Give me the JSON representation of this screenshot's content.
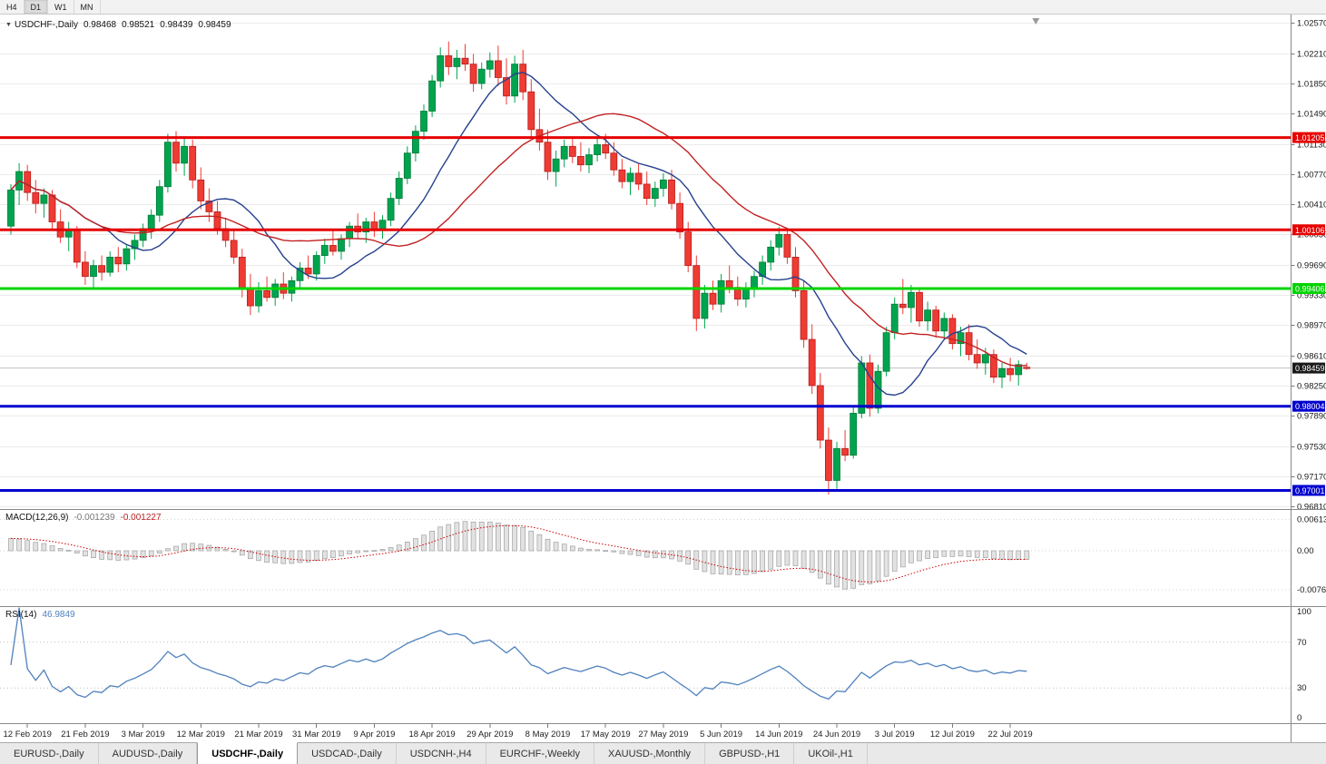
{
  "icons": {
    "dropdown": "▼",
    "shift_marker": "▽"
  },
  "toolbar": {
    "timeframes": [
      {
        "label": "H4",
        "active": false
      },
      {
        "label": "D1",
        "active": true
      },
      {
        "label": "W1",
        "active": false
      },
      {
        "label": "MN",
        "active": false
      }
    ]
  },
  "chart": {
    "title": "USDCHF-,Daily",
    "open": "0.98468",
    "high": "0.98521",
    "low": "0.98439",
    "close": "0.98459",
    "price_axis_labels": [
      "1.02570",
      "1.02210",
      "1.01850",
      "1.01490",
      "1.01130",
      "1.00770",
      "1.00410",
      "1.00050",
      "0.99690",
      "0.99330",
      "0.98970",
      "0.98610",
      "0.98250",
      "0.97890",
      "0.97530",
      "0.97170",
      "0.96810"
    ],
    "current_price": {
      "value": 0.98459,
      "label": "0.98459",
      "badge_color": "#1a1a1a"
    },
    "levels": [
      {
        "value": 1.01205,
        "label": "1.01205",
        "color": "#e60000"
      },
      {
        "value": 1.00106,
        "label": "1.00106",
        "color": "#e60000"
      },
      {
        "value": 0.99406,
        "label": "0.99406",
        "color": "#00d400"
      },
      {
        "value": 0.98004,
        "label": "0.98004",
        "color": "#0000d0"
      },
      {
        "value": 0.97001,
        "label": "0.97001",
        "color": "#0000d0"
      }
    ]
  },
  "chart_data": {
    "type": "candlestick",
    "symbol": "USDCHF",
    "timeframe": "Daily",
    "price_range": {
      "min": 0.96779,
      "max": 1.02671
    },
    "x_ticks": {
      "labels": [
        "12 Feb 2019",
        "21 Feb 2019",
        "3 Mar 2019",
        "12 Mar 2019",
        "21 Mar 2019",
        "31 Mar 2019",
        "9 Apr 2019",
        "18 Apr 2019",
        "29 Apr 2019",
        "8 May 2019",
        "17 May 2019",
        "27 May 2019",
        "5 Jun 2019",
        "14 Jun 2019",
        "24 Jun 2019",
        "3 Jul 2019",
        "12 Jul 2019",
        "22 Jul 2019"
      ],
      "indices": [
        2,
        9,
        16,
        23,
        30,
        37,
        44,
        51,
        58,
        65,
        72,
        79,
        86,
        93,
        100,
        107,
        114,
        121
      ]
    },
    "candles": [
      [
        1.0015,
        1.0065,
        1.0005,
        1.0058
      ],
      [
        1.0058,
        1.009,
        1.004,
        1.008
      ],
      [
        1.008,
        1.0088,
        1.0045,
        1.0055
      ],
      [
        1.0055,
        1.007,
        1.003,
        1.0042
      ],
      [
        1.0042,
        1.006,
        1.0025,
        1.0052
      ],
      [
        1.0052,
        1.0058,
        1.001,
        1.002
      ],
      [
        1.002,
        1.0035,
        0.9995,
        1.0002
      ],
      [
        1.0002,
        1.002,
        0.9985,
        1.001
      ],
      [
        1.001,
        1.0015,
        0.9965,
        0.9972
      ],
      [
        0.9972,
        0.9985,
        0.9945,
        0.9955
      ],
      [
        0.9955,
        0.9975,
        0.994,
        0.9968
      ],
      [
        0.9968,
        0.998,
        0.995,
        0.996
      ],
      [
        0.996,
        0.9985,
        0.9955,
        0.9978
      ],
      [
        0.9978,
        0.999,
        0.996,
        0.997
      ],
      [
        0.997,
        0.9993,
        0.9962,
        0.9988
      ],
      [
        0.9988,
        1.0005,
        0.9975,
        0.9998
      ],
      [
        0.9998,
        1.0018,
        0.999,
        1.0012
      ],
      [
        1.0012,
        1.0035,
        1.0,
        1.0028
      ],
      [
        1.0028,
        1.007,
        1.002,
        1.0062
      ],
      [
        1.0062,
        1.0125,
        1.0055,
        1.0115
      ],
      [
        1.0115,
        1.0128,
        1.008,
        1.009
      ],
      [
        1.009,
        1.0122,
        1.0075,
        1.011
      ],
      [
        1.011,
        1.0118,
        1.006,
        1.007
      ],
      [
        1.007,
        1.0085,
        1.0035,
        1.0045
      ],
      [
        1.0045,
        1.006,
        1.002,
        1.0032
      ],
      [
        1.0032,
        1.0045,
        1.0005,
        1.0012
      ],
      [
        1.0012,
        1.0025,
        0.999,
        0.9998
      ],
      [
        0.9998,
        1.001,
        0.997,
        0.9978
      ],
      [
        0.9978,
        0.9988,
        0.993,
        0.994
      ],
      [
        0.994,
        0.9958,
        0.9909,
        0.992
      ],
      [
        0.992,
        0.9948,
        0.9912,
        0.9938
      ],
      [
        0.9938,
        0.9955,
        0.9925,
        0.993
      ],
      [
        0.993,
        0.9952,
        0.992,
        0.9946
      ],
      [
        0.9946,
        0.996,
        0.9928,
        0.9935
      ],
      [
        0.9935,
        0.9955,
        0.9925,
        0.995
      ],
      [
        0.995,
        0.9972,
        0.994,
        0.9965
      ],
      [
        0.9965,
        0.998,
        0.9952,
        0.9958
      ],
      [
        0.9958,
        0.9985,
        0.995,
        0.998
      ],
      [
        0.998,
        1.0,
        0.997,
        0.9992
      ],
      [
        0.9992,
        1.001,
        0.998,
        0.9985
      ],
      [
        0.9985,
        1.0005,
        0.9975,
        1.0
      ],
      [
        1.0,
        1.002,
        0.999,
        1.0015
      ],
      [
        1.0015,
        1.003,
        1.0,
        1.0008
      ],
      [
        1.0008,
        1.0025,
        0.9995,
        1.002
      ],
      [
        1.002,
        1.0032,
        1.0002,
        1.001
      ],
      [
        1.001,
        1.0028,
        1.0,
        1.0022
      ],
      [
        1.0022,
        1.0055,
        1.0015,
        1.0048
      ],
      [
        1.0048,
        1.008,
        1.004,
        1.0072
      ],
      [
        1.0072,
        1.011,
        1.0065,
        1.0102
      ],
      [
        1.0102,
        1.0135,
        1.0092,
        1.0128
      ],
      [
        1.0128,
        1.016,
        1.0118,
        1.0152
      ],
      [
        1.0152,
        1.0195,
        1.0145,
        1.0188
      ],
      [
        1.0188,
        1.0228,
        1.018,
        1.0218
      ],
      [
        1.0218,
        1.0235,
        1.0195,
        1.0205
      ],
      [
        1.0205,
        1.0225,
        1.019,
        1.0215
      ],
      [
        1.0215,
        1.0232,
        1.02,
        1.0208
      ],
      [
        1.0208,
        1.022,
        1.0175,
        1.0185
      ],
      [
        1.0185,
        1.021,
        1.0178,
        1.0202
      ],
      [
        1.0202,
        1.0222,
        1.0192,
        1.0212
      ],
      [
        1.0212,
        1.023,
        1.0182,
        1.0192
      ],
      [
        1.0192,
        1.0215,
        1.016,
        1.017
      ],
      [
        1.017,
        1.0218,
        1.0162,
        1.0208
      ],
      [
        1.0208,
        1.0225,
        1.0165,
        1.0175
      ],
      [
        1.0175,
        1.019,
        1.012,
        1.013
      ],
      [
        1.013,
        1.0155,
        1.0105,
        1.0115
      ],
      [
        1.0115,
        1.013,
        1.007,
        1.008
      ],
      [
        1.008,
        1.0105,
        1.0062,
        1.0095
      ],
      [
        1.0095,
        1.0118,
        1.0085,
        1.011
      ],
      [
        1.011,
        1.0122,
        1.009,
        1.0098
      ],
      [
        1.0098,
        1.0115,
        1.008,
        1.0088
      ],
      [
        1.0088,
        1.0108,
        1.0078,
        1.01
      ],
      [
        1.01,
        1.012,
        1.0092,
        1.0112
      ],
      [
        1.0112,
        1.0125,
        1.0095,
        1.0102
      ],
      [
        1.0102,
        1.0115,
        1.0075,
        1.0082
      ],
      [
        1.0082,
        1.0095,
        1.006,
        1.0068
      ],
      [
        1.0068,
        1.0085,
        1.0052,
        1.0078
      ],
      [
        1.0078,
        1.009,
        1.0058,
        1.0065
      ],
      [
        1.0065,
        1.008,
        1.004,
        1.0048
      ],
      [
        1.0048,
        1.0068,
        1.0038,
        1.006
      ],
      [
        1.006,
        1.0078,
        1.005,
        1.007
      ],
      [
        1.007,
        1.0082,
        1.0035,
        1.0042
      ],
      [
        1.0042,
        1.0055,
        1.0,
        1.0008
      ],
      [
        1.0008,
        1.002,
        0.996,
        0.9968
      ],
      [
        0.9968,
        0.998,
        0.989,
        0.9905
      ],
      [
        0.9905,
        0.9945,
        0.9893,
        0.9935
      ],
      [
        0.9935,
        0.995,
        0.9915,
        0.9922
      ],
      [
        0.9922,
        0.9958,
        0.9912,
        0.995
      ],
      [
        0.995,
        0.9968,
        0.9935,
        0.9942
      ],
      [
        0.9942,
        0.9955,
        0.992,
        0.9928
      ],
      [
        0.9928,
        0.9948,
        0.9918,
        0.994
      ],
      [
        0.994,
        0.9962,
        0.993,
        0.9955
      ],
      [
        0.9955,
        0.998,
        0.9945,
        0.9972
      ],
      [
        0.9972,
        0.9998,
        0.9962,
        0.999
      ],
      [
        0.999,
        1.0014,
        0.998,
        1.0005
      ],
      [
        1.0005,
        1.0012,
        0.997,
        0.9978
      ],
      [
        0.9978,
        0.999,
        0.993,
        0.9938
      ],
      [
        0.9938,
        0.995,
        0.987,
        0.988
      ],
      [
        0.988,
        0.9898,
        0.9815,
        0.9825
      ],
      [
        0.9825,
        0.984,
        0.975,
        0.976
      ],
      [
        0.976,
        0.9775,
        0.9695,
        0.9712
      ],
      [
        0.9712,
        0.9758,
        0.9702,
        0.975
      ],
      [
        0.975,
        0.9772,
        0.9735,
        0.9742
      ],
      [
        0.9742,
        0.98,
        0.9738,
        0.9792
      ],
      [
        0.9792,
        0.986,
        0.9786,
        0.9852
      ],
      [
        0.9852,
        0.9862,
        0.9788,
        0.9798
      ],
      [
        0.9798,
        0.985,
        0.9792,
        0.9842
      ],
      [
        0.9842,
        0.9895,
        0.9836,
        0.9888
      ],
      [
        0.9888,
        0.993,
        0.988,
        0.9922
      ],
      [
        0.9922,
        0.9952,
        0.991,
        0.9918
      ],
      [
        0.9918,
        0.9945,
        0.99,
        0.9936
      ],
      [
        0.9936,
        0.9942,
        0.9895,
        0.9902
      ],
      [
        0.9902,
        0.9925,
        0.989,
        0.9915
      ],
      [
        0.9915,
        0.992,
        0.9882,
        0.989
      ],
      [
        0.989,
        0.9912,
        0.988,
        0.9905
      ],
      [
        0.9905,
        0.991,
        0.9868,
        0.9875
      ],
      [
        0.9875,
        0.9895,
        0.986,
        0.9888
      ],
      [
        0.9888,
        0.9898,
        0.9855,
        0.9862
      ],
      [
        0.9862,
        0.988,
        0.9845,
        0.9852
      ],
      [
        0.9852,
        0.987,
        0.9838,
        0.9862
      ],
      [
        0.9862,
        0.9868,
        0.9828,
        0.9835
      ],
      [
        0.9835,
        0.9852,
        0.9822,
        0.9845
      ],
      [
        0.9845,
        0.9858,
        0.983,
        0.9838
      ],
      [
        0.9838,
        0.9855,
        0.9825,
        0.985
      ],
      [
        0.98468,
        0.98521,
        0.98439,
        0.98459
      ]
    ],
    "moving_averages": [
      {
        "name": "fast-ma",
        "period": 12,
        "color": "#26418f"
      },
      {
        "name": "slow-ma",
        "period": 26,
        "color": "#c22222"
      }
    ],
    "macd": {
      "label": "MACD(12,26,9)",
      "value1": "-0.001239",
      "value2": "-0.001227",
      "params": [
        12,
        26,
        9
      ],
      "axis": {
        "labels": [
          "0.00613",
          "0.00",
          "-0.00761"
        ],
        "values": [
          0.00613,
          0,
          -0.00761
        ]
      }
    },
    "rsi": {
      "label": "RSI(14)",
      "value_text": "46.9849",
      "period": 14,
      "levels": [
        70,
        30
      ],
      "axis": {
        "labels": [
          "100",
          "70",
          "30",
          "0"
        ],
        "values": [
          100,
          70,
          30,
          0
        ]
      }
    }
  },
  "colors": {
    "candle_up": "#00a44e",
    "candle_up_border": "#007a38",
    "candle_down": "#ee3b33",
    "candle_down_border": "#b71c1c",
    "grid": "#ebebeb",
    "separator": "#8a8a8a",
    "axis_text": "#1a1a1a",
    "macd_bar_fill": "#e2e2e2",
    "macd_bar_stroke": "#a0a0a0",
    "macd_signal": "#cc0000",
    "rsi_line": "#4f81bd",
    "current_price_line": "#c0c0c0"
  },
  "tabs": [
    {
      "label": "EURUSD-,Daily",
      "active": false
    },
    {
      "label": "AUDUSD-,Daily",
      "active": false
    },
    {
      "label": "USDCHF-,Daily",
      "active": true
    },
    {
      "label": "USDCAD-,Daily",
      "active": false
    },
    {
      "label": "USDCNH-,H4",
      "active": false
    },
    {
      "label": "EURCHF-,Weekly",
      "active": false
    },
    {
      "label": "XAUUSD-,Monthly",
      "active": false
    },
    {
      "label": "GBPUSD-,H1",
      "active": false
    },
    {
      "label": "UKOil-,H1",
      "active": false
    }
  ]
}
